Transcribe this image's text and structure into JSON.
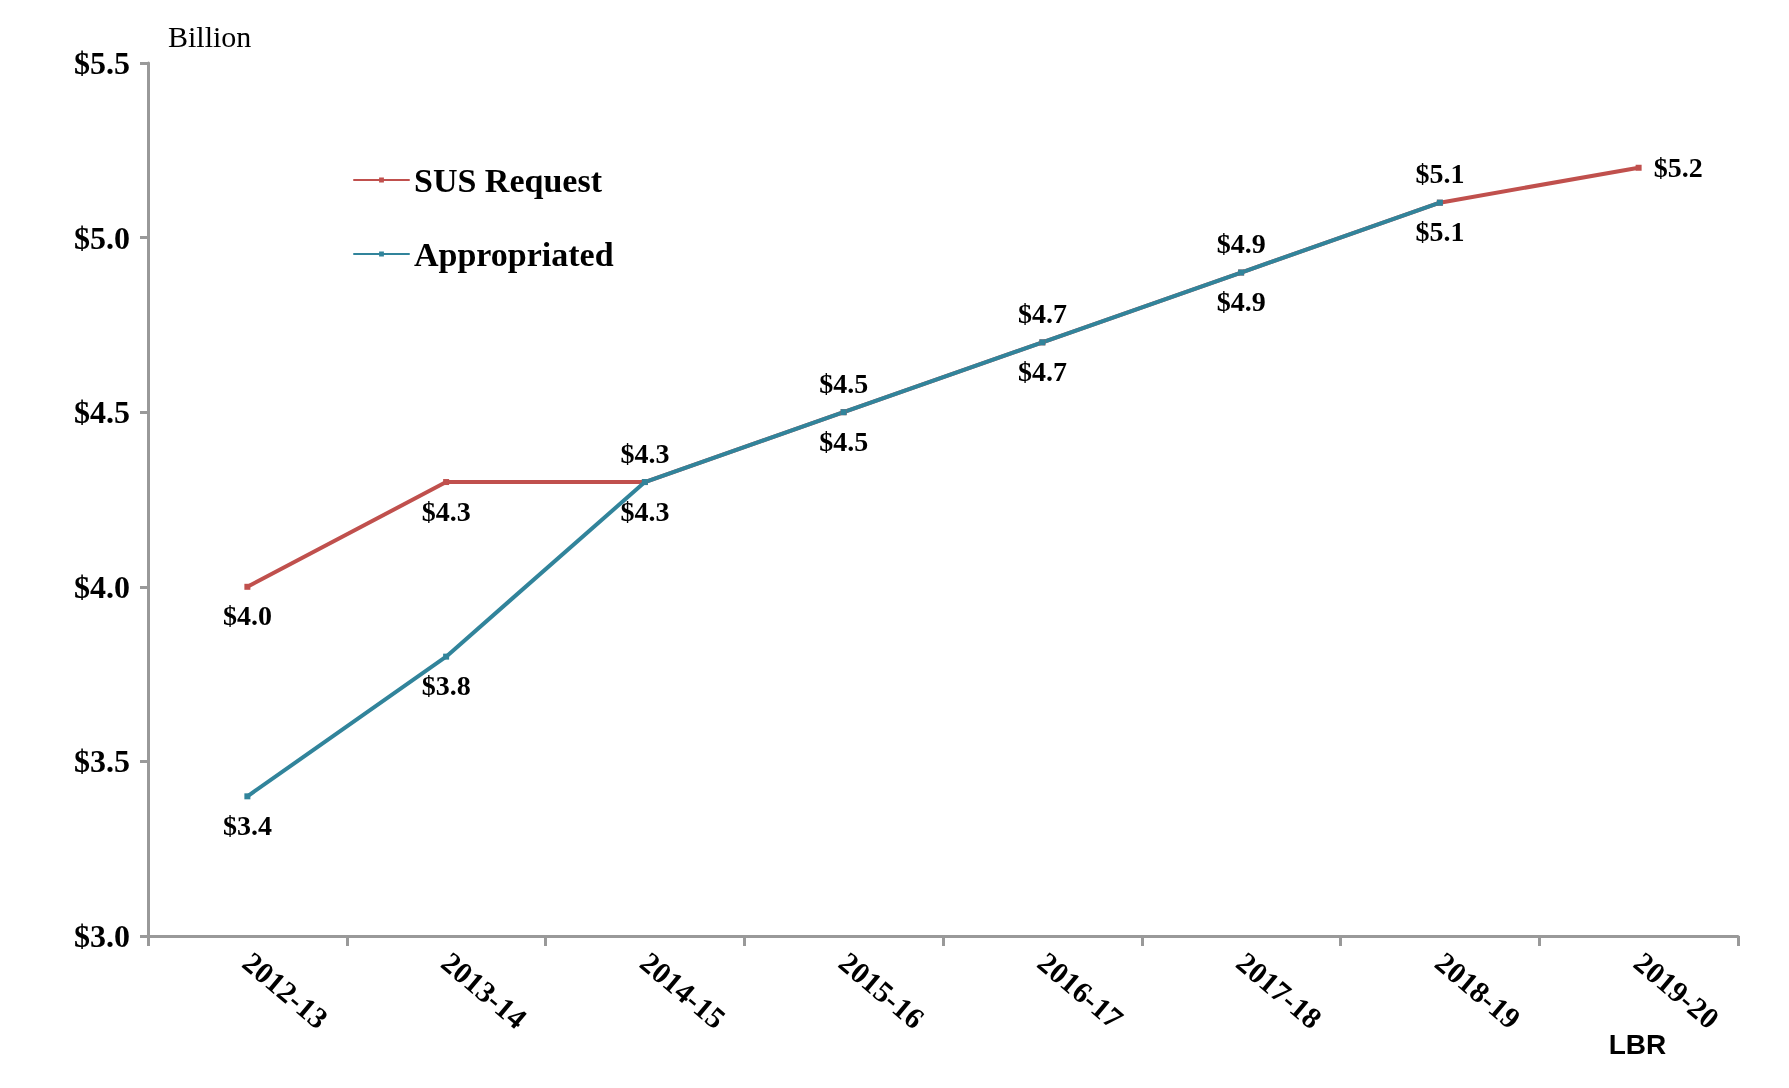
{
  "chart_data": {
    "type": "line",
    "ylabel": "Billion",
    "categories": [
      "2012-13",
      "2013-14",
      "2014-15",
      "2015-16",
      "2016-17",
      "2017-18",
      "2018-19",
      "2019-20"
    ],
    "series": [
      {
        "name": "SUS Request",
        "color": "#c0504d",
        "values": [
          4.0,
          4.3,
          4.3,
          4.5,
          4.7,
          4.9,
          5.1,
          5.2
        ],
        "value_labels": [
          "$4.0",
          "$4.3",
          "$4.3",
          "$4.5",
          "$4.7",
          "$4.9",
          "$5.1",
          "$5.2"
        ]
      },
      {
        "name": "Appropriated",
        "color": "#31849b",
        "values": [
          3.4,
          3.8,
          4.3,
          4.5,
          4.7,
          4.9,
          5.1,
          null
        ],
        "value_labels": [
          "$3.4",
          "$3.8",
          "$4.3",
          "$4.5",
          "$4.7",
          "$4.9",
          "$5.1",
          null
        ]
      }
    ],
    "ylim": [
      3.0,
      5.5
    ],
    "yticks": [
      {
        "value": 3.0,
        "label": "$3.0"
      },
      {
        "value": 3.5,
        "label": "$3.5"
      },
      {
        "value": 4.0,
        "label": "$4.0"
      },
      {
        "value": 4.5,
        "label": "$4.5"
      },
      {
        "value": 5.0,
        "label": "$5.0"
      },
      {
        "value": 5.5,
        "label": "$5.5"
      }
    ],
    "annotations": [
      "LBR"
    ],
    "grid": false,
    "legend": "top left",
    "marker": "square",
    "line_style": "solid"
  }
}
